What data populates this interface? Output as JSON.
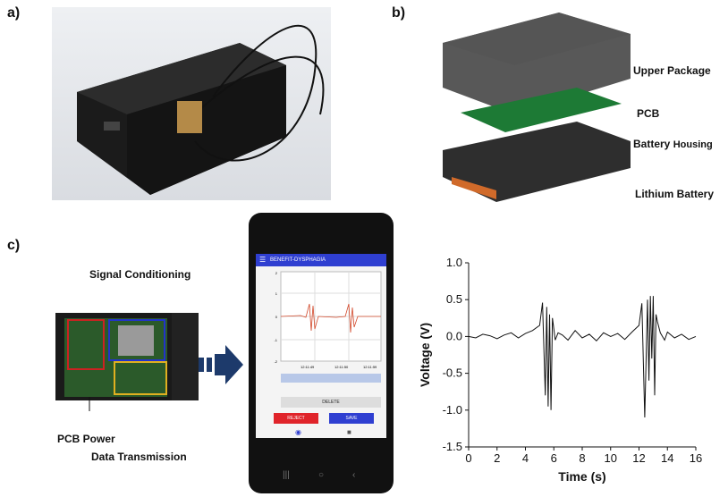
{
  "panel_labels": {
    "a": "a)",
    "b": "b)",
    "c": "c)"
  },
  "panel_b": {
    "labels": [
      "Upper Package",
      "PCB",
      "Battery",
      "Housing",
      "Lithium Battery"
    ]
  },
  "panel_c": {
    "labels": {
      "signal": "Signal Conditioning",
      "power": "PCB Power",
      "data": "Data Transmission"
    },
    "app": {
      "title": "BENEFIT-DYSPHAGIA",
      "times": [
        "12:11:49",
        "12:11:50",
        "12:11:59"
      ],
      "mini_ticks": [
        "2",
        "1",
        "0",
        "-1",
        "-2"
      ],
      "delete": "DELETE",
      "reject": "REJECT",
      "save": "SAVE"
    }
  },
  "colors": {
    "accent": "#2f3fd1",
    "reject": "#e0242a",
    "signal": "#d2482a"
  },
  "chart_data": {
    "type": "line",
    "xlabel": "Time (s)",
    "ylabel": "Voltage (V)",
    "xlim": [
      0,
      16
    ],
    "ylim": [
      -1.5,
      1.0
    ],
    "xticks": [
      "0",
      "2",
      "4",
      "6",
      "8",
      "10",
      "12",
      "14",
      "16"
    ],
    "yticks": [
      "1.0",
      "0.5",
      "0.0",
      "-0.5",
      "-1.0",
      "-1.5"
    ],
    "series": [
      {
        "x": [
          0,
          0.5,
          1,
          1.5,
          2,
          2.5,
          3,
          3.5,
          4,
          4.5,
          5,
          5.2,
          5.4,
          5.5,
          5.6,
          5.7,
          5.8,
          5.9,
          6,
          6.1,
          6.3,
          6.6,
          7,
          7.5,
          8,
          8.5,
          9,
          9.5,
          10,
          10.5,
          11,
          11.5,
          12,
          12.2,
          12.4,
          12.6,
          12.7,
          12.8,
          12.9,
          13,
          13.1,
          13.2,
          13.3,
          13.5,
          13.8,
          14,
          14.5,
          15,
          15.5,
          16
        ],
        "y": [
          0,
          -0.02,
          0.03,
          0.01,
          -0.03,
          0.02,
          0.05,
          -0.02,
          0.04,
          0.08,
          0.15,
          0.46,
          -0.8,
          0.4,
          -0.95,
          0.3,
          -1.0,
          0.25,
          0.1,
          -0.05,
          0.05,
          0.02,
          -0.05,
          0.08,
          -0.02,
          0.03,
          -0.06,
          0.05,
          0.0,
          0.04,
          -0.04,
          0.06,
          0.15,
          0.45,
          -1.1,
          0.5,
          -0.6,
          0.55,
          -0.3,
          0.55,
          -0.8,
          0.3,
          0.2,
          0.05,
          -0.05,
          0.06,
          -0.02,
          0.03,
          -0.04,
          0.0
        ]
      }
    ]
  }
}
